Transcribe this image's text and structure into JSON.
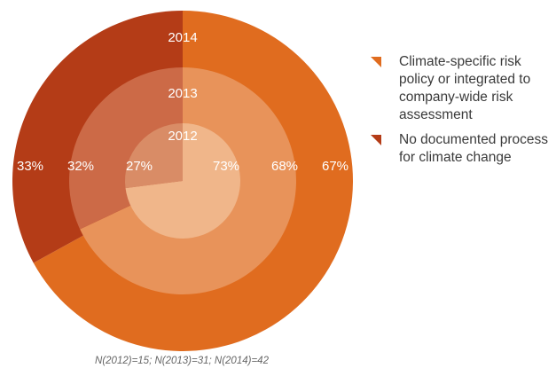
{
  "chart_data": {
    "type": "pie",
    "title": "",
    "rings": [
      {
        "year": "2014",
        "values": [
          67,
          33
        ],
        "labels": [
          "67%",
          "33%"
        ],
        "colors": [
          "#E06C1F",
          "#B43C17"
        ]
      },
      {
        "year": "2013",
        "values": [
          68,
          32
        ],
        "labels": [
          "68%",
          "32%"
        ],
        "colors": [
          "#E8935A",
          "#CC6A47"
        ]
      },
      {
        "year": "2012",
        "values": [
          73,
          27
        ],
        "labels": [
          "73%",
          "27%"
        ],
        "colors": [
          "#F0B68A",
          "#D98C66"
        ]
      }
    ],
    "legend": [
      {
        "label": "Climate-specific risk policy or integrated to company-wide risk assessment",
        "color": "#E06C1F"
      },
      {
        "label": "No documented process for climate change",
        "color": "#B43C17"
      }
    ],
    "legend_position": "right"
  },
  "footnote": "N(2012)=15; N(2013)=31; N(2014)=42"
}
